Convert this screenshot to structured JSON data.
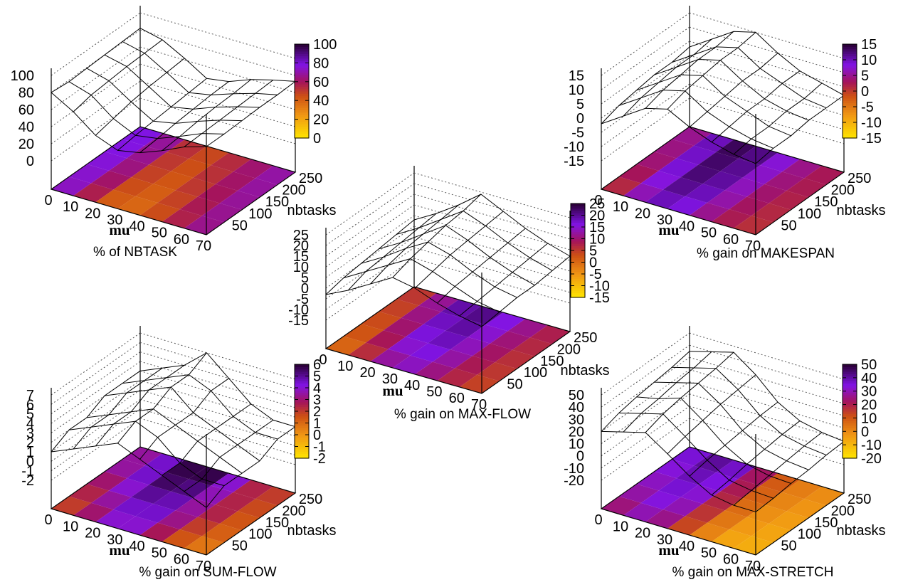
{
  "chart_data": [
    {
      "type": "surface3d",
      "title": "% of NBTASK",
      "xlabel": "mu",
      "ylabel": "nbtasks",
      "x_ticks": [
        "0",
        "10",
        "20",
        "30",
        "40",
        "50",
        "60",
        "70"
      ],
      "y_ticks": [
        "50",
        "100",
        "150",
        "200",
        "250"
      ],
      "z_ticks": [
        "0",
        "20",
        "40",
        "60",
        "80",
        "100"
      ],
      "zlim": [
        0,
        100
      ],
      "colorbar_ticks": [
        "0",
        "20",
        "40",
        "60",
        "80",
        "100"
      ],
      "cblim": [
        0,
        100
      ],
      "surface_grid": [
        [
          80,
          65,
          45,
          35,
          40,
          50,
          62,
          70
        ],
        [
          78,
          70,
          50,
          38,
          42,
          52,
          63,
          70
        ],
        [
          79,
          72,
          55,
          40,
          45,
          55,
          64,
          71
        ],
        [
          80,
          74,
          58,
          42,
          47,
          57,
          65,
          72
        ],
        [
          81,
          75,
          60,
          44,
          49,
          58,
          66,
          72
        ],
        [
          82,
          76,
          62,
          46,
          50,
          60,
          67,
          73
        ]
      ],
      "colormap_min": "#ffe400",
      "colormap_max": "#2a0030"
    },
    {
      "type": "surface3d",
      "title": "% gain on MAKESPAN",
      "xlabel": "mu",
      "ylabel": "nbtasks",
      "x_ticks": [
        "0",
        "10",
        "20",
        "30",
        "40",
        "50",
        "60",
        "70"
      ],
      "y_ticks": [
        "50",
        "100",
        "150",
        "200",
        "250"
      ],
      "z_ticks": [
        "-15",
        "-10",
        "-5",
        "0",
        "5",
        "10",
        "15"
      ],
      "zlim": [
        -15,
        15
      ],
      "colorbar_ticks": [
        "-15",
        "-10",
        "-5",
        "0",
        "5",
        "10",
        "15"
      ],
      "cblim": [
        -15,
        15
      ],
      "surface_grid": [
        [
          -2,
          3,
          8,
          10,
          6,
          3,
          1,
          0
        ],
        [
          0,
          5,
          10,
          12,
          7,
          4,
          2,
          1
        ],
        [
          1,
          6,
          11,
          13,
          8,
          5,
          2,
          1
        ],
        [
          2,
          7,
          12,
          14,
          9,
          5,
          3,
          2
        ],
        [
          2,
          7,
          12,
          14,
          9,
          6,
          3,
          2
        ],
        [
          3,
          8,
          13,
          15,
          10,
          6,
          4,
          2
        ]
      ]
    },
    {
      "type": "surface3d",
      "title": "% gain on MAX-FLOW",
      "xlabel": "mu",
      "ylabel": "nbtasks",
      "x_ticks": [
        "0",
        "10",
        "20",
        "30",
        "40",
        "50",
        "60",
        "70"
      ],
      "y_ticks": [
        "50",
        "100",
        "150",
        "200",
        "250"
      ],
      "z_ticks": [
        "-15",
        "-10",
        "-5",
        "0",
        "5",
        "10",
        "15",
        "20",
        "25"
      ],
      "zlim": [
        -15,
        25
      ],
      "colorbar_ticks": [
        "-15",
        "-10",
        "-5",
        "0",
        "5",
        "10",
        "15",
        "20",
        "25"
      ],
      "cblim": [
        -15,
        25
      ],
      "surface_grid": [
        [
          -3,
          2,
          8,
          14,
          12,
          8,
          5,
          3
        ],
        [
          -1,
          5,
          11,
          17,
          14,
          10,
          6,
          4
        ],
        [
          0,
          6,
          13,
          19,
          16,
          11,
          7,
          5
        ],
        [
          1,
          7,
          14,
          21,
          17,
          12,
          8,
          5
        ],
        [
          2,
          8,
          15,
          22,
          18,
          13,
          9,
          6
        ],
        [
          3,
          9,
          16,
          24,
          19,
          14,
          10,
          7
        ]
      ]
    },
    {
      "type": "surface3d",
      "title": "% gain on SUM-FLOW",
      "xlabel": "mu",
      "ylabel": "nbtasks",
      "x_ticks": [
        "0",
        "10",
        "20",
        "30",
        "40",
        "50",
        "60",
        "70"
      ],
      "y_ticks": [
        "50",
        "100",
        "150",
        "200",
        "250"
      ],
      "z_ticks": [
        "-2",
        "-1",
        "0",
        "1",
        "2",
        "3",
        "4",
        "5",
        "6",
        "7"
      ],
      "zlim": [
        -2,
        7
      ],
      "colorbar_ticks": [
        "-2",
        "-1",
        "0",
        "1",
        "2",
        "3",
        "4",
        "5",
        "6"
      ],
      "cblim": [
        -2,
        6
      ],
      "surface_grid": [
        [
          1,
          2,
          3,
          4,
          3,
          2,
          1,
          0
        ],
        [
          2,
          3,
          4,
          5,
          4,
          2,
          1,
          1
        ],
        [
          2,
          3,
          4,
          5,
          4,
          3,
          2,
          1
        ],
        [
          3,
          4,
          5,
          6,
          4,
          3,
          2,
          1
        ],
        [
          3,
          4,
          5,
          6,
          5,
          3,
          2,
          2
        ],
        [
          3,
          4,
          5,
          7,
          5,
          3,
          2,
          2
        ]
      ]
    },
    {
      "type": "surface3d",
      "title": "% gain on MAX-STRETCH",
      "xlabel": "mu",
      "ylabel": "nbtasks",
      "x_ticks": [
        "0",
        "10",
        "20",
        "30",
        "40",
        "50",
        "60",
        "70"
      ],
      "y_ticks": [
        "50",
        "100",
        "150",
        "200",
        "250"
      ],
      "z_ticks": [
        "-20",
        "-10",
        "0",
        "10",
        "20",
        "30",
        "40",
        "50"
      ],
      "zlim": [
        -20,
        50
      ],
      "colorbar_ticks": [
        "-20",
        "-10",
        "0",
        "10",
        "20",
        "30",
        "40",
        "50"
      ],
      "cblim": [
        -20,
        50
      ],
      "surface_grid": [
        [
          20,
          25,
          30,
          18,
          5,
          -5,
          -8,
          -8
        ],
        [
          25,
          30,
          35,
          22,
          8,
          -3,
          -6,
          -7
        ],
        [
          28,
          32,
          38,
          25,
          10,
          0,
          -4,
          -5
        ],
        [
          30,
          35,
          40,
          28,
          12,
          2,
          -2,
          -4
        ],
        [
          32,
          37,
          42,
          30,
          14,
          4,
          0,
          -2
        ],
        [
          35,
          40,
          45,
          32,
          15,
          5,
          1,
          -1
        ]
      ]
    }
  ]
}
